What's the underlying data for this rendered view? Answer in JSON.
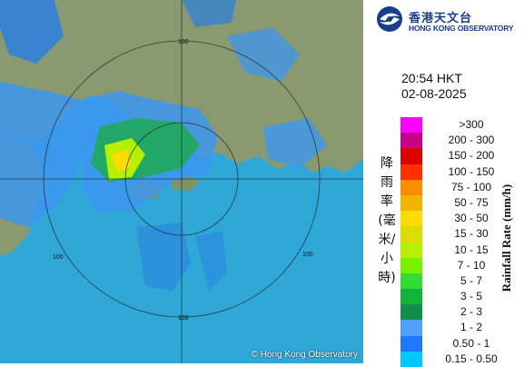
{
  "map": {
    "copyright": "© Hong Kong Observatory",
    "range_labels": [
      "100",
      "100",
      "100",
      "100"
    ]
  },
  "panel": {
    "logo_zh": "香港天文台",
    "logo_en": "HONG KONG OBSERVATORY",
    "time": "20:54 HKT",
    "date": "02-08-2025",
    "title_zh": "降雨率(毫米/小時)",
    "title_en": "Rainfall Rate (mm/h)"
  },
  "legend": [
    {
      "label": ">300",
      "color": "#ff00ff"
    },
    {
      "label": "200 - 300",
      "color": "#c8008c"
    },
    {
      "label": "150 - 200",
      "color": "#dc0000"
    },
    {
      "label": "100 - 150",
      "color": "#ff3000"
    },
    {
      "label": "75 - 100",
      "color": "#ff8c00"
    },
    {
      "label": "50 - 75",
      "color": "#f0b400"
    },
    {
      "label": "30 - 50",
      "color": "#ffdc00"
    },
    {
      "label": "15 - 30",
      "color": "#dcdc00"
    },
    {
      "label": "10 - 15",
      "color": "#b4f000"
    },
    {
      "label": "7 - 10",
      "color": "#78f000"
    },
    {
      "label": "5 - 7",
      "color": "#32dc32"
    },
    {
      "label": "3 - 5",
      "color": "#14b43c"
    },
    {
      "label": "2 - 3",
      "color": "#148c50"
    },
    {
      "label": "1 - 2",
      "color": "#50a0ff"
    },
    {
      "label": "0.50 - 1",
      "color": "#1e78ff"
    },
    {
      "label": "0.15 - 0.50",
      "color": "#00c8ff"
    }
  ]
}
